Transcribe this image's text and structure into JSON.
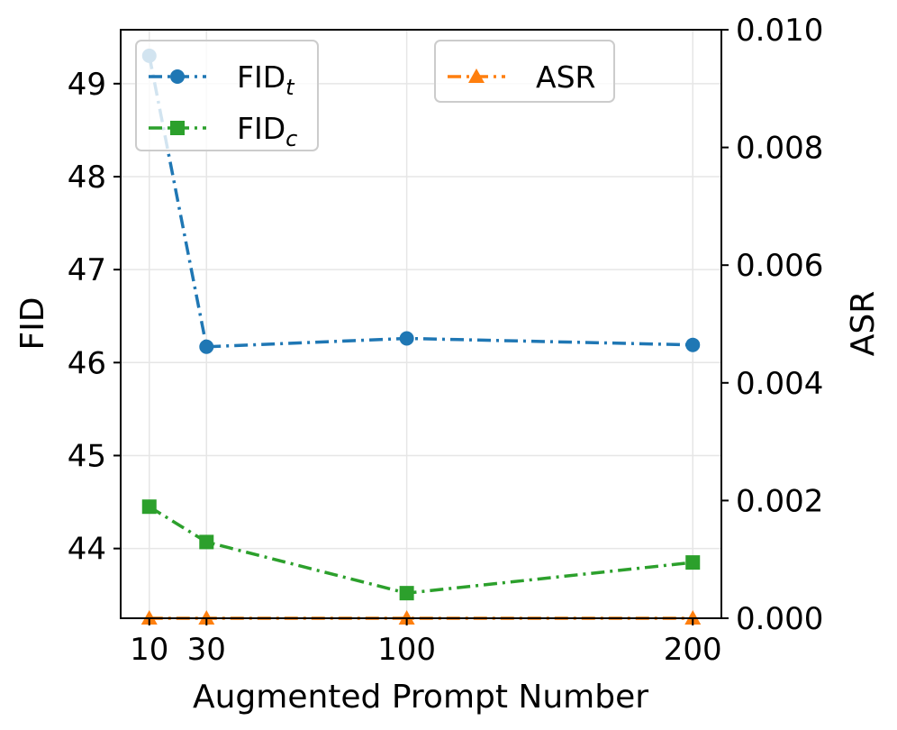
{
  "chart_data": {
    "type": "line",
    "xlabel": "Augmented Prompt Number",
    "ylabel_left": "FID",
    "ylabel_right": "ASR",
    "x": [
      10,
      30,
      100,
      200
    ],
    "x_ticks": [
      "10",
      "30",
      "100",
      "200"
    ],
    "xlim": [
      0,
      210
    ],
    "ylim_left": [
      43.25,
      49.58
    ],
    "ylim_right": [
      0.0,
      0.01
    ],
    "y_ticks_left": [
      "44",
      "45",
      "46",
      "47",
      "48",
      "49"
    ],
    "y_ticks_right": [
      "0.000",
      "0.002",
      "0.004",
      "0.006",
      "0.008",
      "0.010"
    ],
    "grid": true,
    "series": [
      {
        "name": "FID",
        "subscript": "t",
        "axis": "left",
        "marker": "circle",
        "line_style": "dash-dot",
        "color": "#1f77b4",
        "values": [
          49.3,
          46.17,
          46.26,
          46.19
        ]
      },
      {
        "name": "FID",
        "subscript": "c",
        "axis": "left",
        "marker": "square",
        "line_style": "dash-dot",
        "color": "#2ca02c",
        "values": [
          44.45,
          44.07,
          43.52,
          43.85
        ]
      },
      {
        "name": "ASR",
        "axis": "right",
        "marker": "triangle",
        "line_style": "dash-dot",
        "color": "#ff7f0e",
        "values": [
          0.0,
          0.0,
          0.0,
          0.0
        ]
      }
    ],
    "legends": [
      {
        "placement": "top-left",
        "entries": [
          0,
          1
        ]
      },
      {
        "placement": "top-center-right",
        "entries": [
          2
        ]
      }
    ]
  }
}
